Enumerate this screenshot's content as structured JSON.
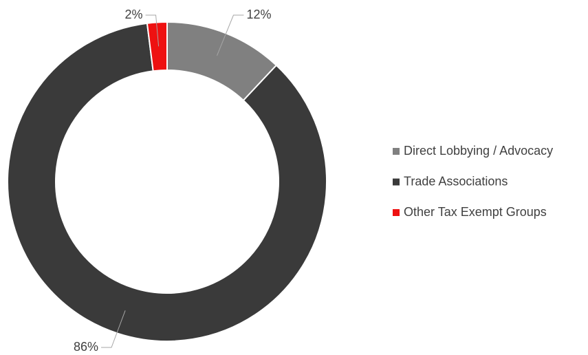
{
  "chart_data": {
    "type": "donut",
    "categories": [
      "Direct Lobbying / Advocacy",
      "Trade Associations",
      "Other Tax Exempt Groups"
    ],
    "values": [
      12,
      86,
      2
    ],
    "value_labels": [
      "12%",
      "86%",
      "2%"
    ],
    "colors": [
      "#808080",
      "#3a3a3a",
      "#ee1111"
    ],
    "legend": "right"
  }
}
